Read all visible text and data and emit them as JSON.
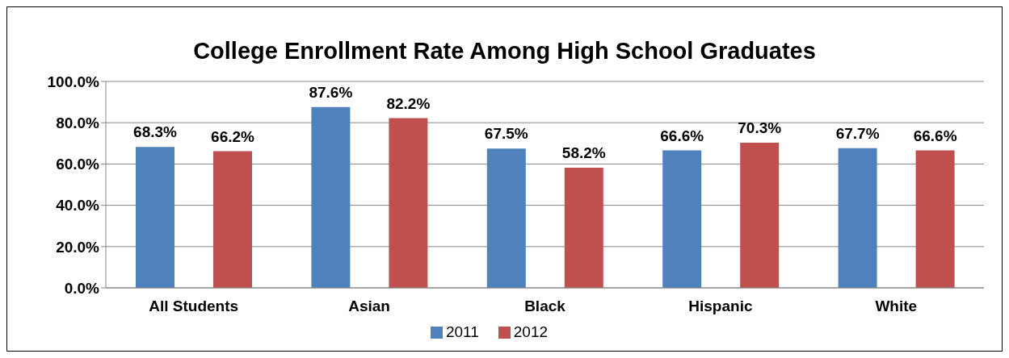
{
  "chart_data": {
    "type": "bar",
    "title": "College Enrollment Rate Among High School Graduates",
    "categories": [
      "All Students",
      "Asian",
      "Black",
      "Hispanic",
      "White"
    ],
    "series": [
      {
        "name": "2011",
        "color": "#4f81bd",
        "values": [
          68.3,
          87.6,
          67.5,
          66.6,
          67.7
        ],
        "value_labels": [
          "68.3%",
          "87.6%",
          "67.5%",
          "66.6%",
          "67.7%"
        ]
      },
      {
        "name": "2012",
        "color": "#c0504d",
        "values": [
          66.2,
          82.2,
          58.2,
          70.3,
          66.6
        ],
        "value_labels": [
          "66.2%",
          "82.2%",
          "58.2%",
          "70.3%",
          "66.6%"
        ]
      }
    ],
    "ylim": [
      0,
      100
    ],
    "yticks": [
      {
        "value": 0,
        "label": "0.0%"
      },
      {
        "value": 20,
        "label": "20.0%"
      },
      {
        "value": 40,
        "label": "40.0%"
      },
      {
        "value": 60,
        "label": "60.0%"
      },
      {
        "value": 80,
        "label": "80.0%"
      },
      {
        "value": 100,
        "label": "100.0%"
      }
    ],
    "grid": "y",
    "legend": "bottom"
  }
}
